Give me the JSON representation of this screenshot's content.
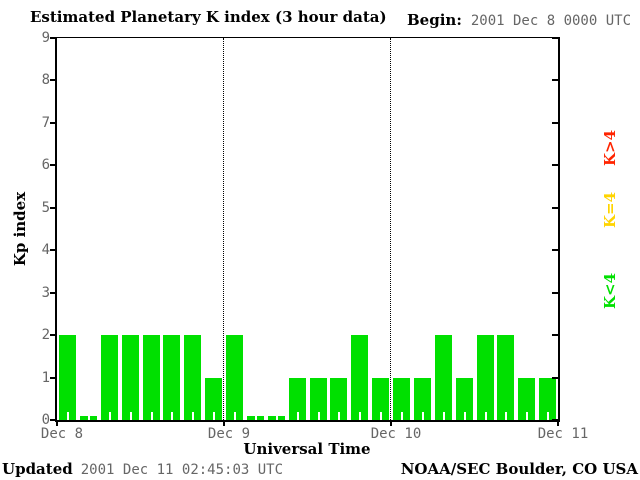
{
  "header": {
    "title": "Estimated Planetary K index (3 hour data)",
    "begin_label": "Begin:",
    "begin_value": "2001 Dec 8 0000 UTC"
  },
  "chart_data": {
    "type": "bar",
    "title": "Estimated Planetary K index (3 hour data)",
    "xlabel": "Universal Time",
    "ylabel": "Kp index",
    "ylim": [
      0,
      9
    ],
    "y_ticks": [
      0,
      1,
      2,
      3,
      4,
      5,
      6,
      7,
      8,
      9
    ],
    "x_axis_labels": [
      "Dec 8",
      "Dec 9",
      "Dec 10",
      "Dec 11"
    ],
    "bin_hours": 3,
    "begin": "2001 Dec 8 0000 UTC",
    "days": [
      {
        "label": "Dec 8",
        "values": [
          2,
          0,
          2,
          2,
          2,
          2,
          2,
          1
        ]
      },
      {
        "label": "Dec 9",
        "values": [
          2,
          0,
          0,
          1,
          1,
          1,
          2,
          1
        ]
      },
      {
        "label": "Dec 10",
        "values": [
          1,
          1,
          2,
          1,
          2,
          2,
          1,
          1
        ]
      }
    ],
    "bar_color": "#00e000",
    "grid": "dotted vertical lines at day boundaries",
    "legend_position": "right",
    "legend": [
      {
        "label": "K>4",
        "color": "#ff2400"
      },
      {
        "label": "K=4",
        "color": "#ffd400"
      },
      {
        "label": "K<4",
        "color": "#00e000"
      }
    ]
  },
  "footer": {
    "updated_label": "Updated",
    "updated_value": "2001 Dec 11 02:45:03 UTC",
    "source": "NOAA/SEC Boulder, CO USA"
  }
}
